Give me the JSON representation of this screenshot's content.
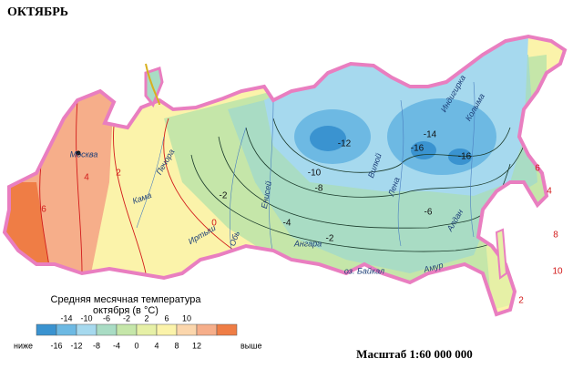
{
  "header": {
    "title": "ОКТЯБРЬ"
  },
  "legend": {
    "title_line1": "Средняя месячная температура",
    "title_line2": "октября (в °C)",
    "mid_labels": [
      "-14",
      "-10",
      "-6",
      "-2",
      "2",
      "6",
      "10"
    ],
    "lower_label": "ниже",
    "edge_labels": [
      "-16",
      "-12",
      "-8",
      "-4",
      "0",
      "4",
      "8",
      "12"
    ],
    "upper_label": "выше",
    "colors": [
      "#3a93d0",
      "#6db9e3",
      "#a6d9ee",
      "#a9dcc4",
      "#c5e6a9",
      "#e6f0a6",
      "#fbf3aa",
      "#fbd6ac",
      "#f6ae8a",
      "#ef7d45"
    ]
  },
  "scale": "Масштаб 1:60 000 000",
  "places": [
    "Москва",
    "Кама",
    "Печора",
    "Обь",
    "Иртыш",
    "Енисей",
    "Ангара",
    "оз. Байкал",
    "Амур",
    "Лена",
    "Вилюй",
    "Колыма",
    "Алдан",
    "Индигирка"
  ],
  "isotherm_labels": [
    "-12",
    "-14",
    "-16",
    "-16",
    "-10",
    "-8",
    "-6",
    "-4",
    "-2",
    "-2",
    "0",
    "2",
    "4",
    "6",
    "6",
    "8",
    "10",
    "4",
    "2"
  ]
}
